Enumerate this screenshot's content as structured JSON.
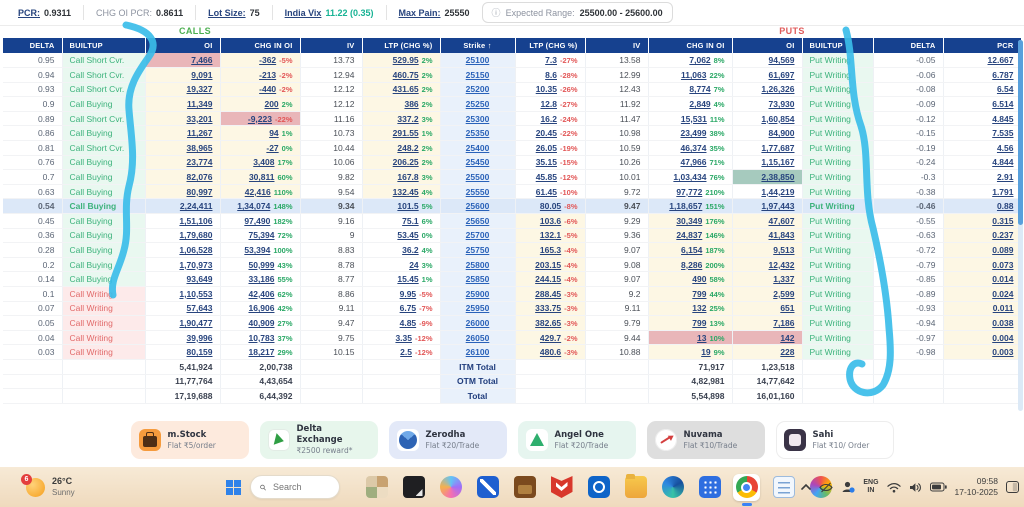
{
  "theme": {
    "header_navy": "#16418f",
    "cream": "#fdf7e4",
    "strike_bg": "#e9f1fb",
    "atm_row": "#dce8f8",
    "green": "#2aa866",
    "red": "#e25757",
    "link_navy": "#27447e",
    "strike_link": "#2a62b9",
    "builtup_green": "#3db27c",
    "builtup_red": "#e16a6a",
    "highlight_pink": "#e9b6b9",
    "highlight_green": "#a6cabe",
    "annotation": "#3bbde9",
    "taskbar_tan": "#f7ead6"
  },
  "top_bar": {
    "pcr_label": "PCR:",
    "pcr_value": "0.9311",
    "chg_oi_pcr_label": "CHG OI PCR:",
    "chg_oi_pcr_value": "0.8611",
    "lot_size_label": "Lot Size:",
    "lot_size_value": "75",
    "india_vix_label": "India Vix",
    "india_vix_value": "11.22 (0.35)",
    "max_pain_label": "Max Pain:",
    "max_pain_value": "25550",
    "info_icon": "ⓘ",
    "expected_range_label": "Expected Range:",
    "expected_range_value": "25500.00 - 25600.00"
  },
  "section_labels": {
    "calls": "CALLS",
    "puts": "PUTS"
  },
  "table": {
    "calls_headers": [
      "DELTA",
      "BUILTUP",
      "OI",
      "CHG IN OI",
      "IV",
      "LTP (CHG %)",
      "Strike ↑"
    ],
    "puts_headers": [
      "LTP (CHG %)",
      "IV",
      "CHG IN OI",
      "OI",
      "BUILTUP",
      "DELTA",
      "PCR"
    ],
    "rows": [
      {
        "delta": "0.95",
        "builtup": "Call Short Cvr.",
        "builtup_dir": "green",
        "oi": "7,466",
        "oi_hl": "pink",
        "chg": "-362",
        "chg_pct": "-5%",
        "chg_hl": "",
        "iv": "13.73",
        "ltp": "529.95",
        "ltp_pct": "2%",
        "strike": "25100",
        "put_ltp": "7.3",
        "put_ltp_pct": "-27%",
        "put_iv": "13.58",
        "put_chg": "7,062",
        "put_chg_pct": "8%",
        "put_chg_hl": "",
        "put_oi": "94,569",
        "put_oi_hl": "",
        "put_builtup": "Put Writing",
        "put_delta": "-0.05",
        "pcr": "12.667",
        "zone": "call_itm"
      },
      {
        "delta": "0.94",
        "builtup": "Call Short Cvr.",
        "builtup_dir": "green",
        "oi": "9,091",
        "oi_hl": "",
        "chg": "-213",
        "chg_pct": "-2%",
        "chg_hl": "",
        "iv": "12.94",
        "ltp": "460.75",
        "ltp_pct": "2%",
        "strike": "25150",
        "put_ltp": "8.6",
        "put_ltp_pct": "-28%",
        "put_iv": "12.99",
        "put_chg": "11,063",
        "put_chg_pct": "22%",
        "put_chg_hl": "",
        "put_oi": "61,697",
        "put_oi_hl": "",
        "put_builtup": "Put Writing",
        "put_delta": "-0.06",
        "pcr": "6.787",
        "zone": "call_itm"
      },
      {
        "delta": "0.93",
        "builtup": "Call Short Cvr.",
        "builtup_dir": "green",
        "oi": "19,327",
        "oi_hl": "",
        "chg": "-440",
        "chg_pct": "-2%",
        "chg_hl": "",
        "iv": "12.12",
        "ltp": "431.65",
        "ltp_pct": "2%",
        "strike": "25200",
        "put_ltp": "10.35",
        "put_ltp_pct": "-26%",
        "put_iv": "12.43",
        "put_chg": "8,774",
        "put_chg_pct": "7%",
        "put_chg_hl": "",
        "put_oi": "1,26,326",
        "put_oi_hl": "",
        "put_builtup": "Put Writing",
        "put_delta": "-0.08",
        "pcr": "6.54",
        "zone": "call_itm"
      },
      {
        "delta": "0.9",
        "builtup": "Call Buying",
        "builtup_dir": "green",
        "oi": "11,349",
        "oi_hl": "",
        "chg": "200",
        "chg_pct": "2%",
        "chg_hl": "",
        "iv": "12.12",
        "ltp": "386",
        "ltp_pct": "2%",
        "strike": "25250",
        "put_ltp": "12.8",
        "put_ltp_pct": "-27%",
        "put_iv": "11.92",
        "put_chg": "2,849",
        "put_chg_pct": "4%",
        "put_chg_hl": "",
        "put_oi": "73,930",
        "put_oi_hl": "",
        "put_builtup": "Put Writing",
        "put_delta": "-0.09",
        "pcr": "6.514",
        "zone": "call_itm"
      },
      {
        "delta": "0.89",
        "builtup": "Call Short Cvr.",
        "builtup_dir": "green",
        "oi": "33,201",
        "oi_hl": "",
        "chg": "-9,223",
        "chg_pct": "-22%",
        "chg_hl": "pink",
        "iv": "11.16",
        "ltp": "337.2",
        "ltp_pct": "3%",
        "strike": "25300",
        "put_ltp": "16.2",
        "put_ltp_pct": "-24%",
        "put_iv": "11.47",
        "put_chg": "15,531",
        "put_chg_pct": "11%",
        "put_chg_hl": "",
        "put_oi": "1,60,854",
        "put_oi_hl": "",
        "put_builtup": "Put Writing",
        "put_delta": "-0.12",
        "pcr": "4.845",
        "zone": "call_itm"
      },
      {
        "delta": "0.86",
        "builtup": "Call Buying",
        "builtup_dir": "green",
        "oi": "11,267",
        "oi_hl": "",
        "chg": "94",
        "chg_pct": "1%",
        "chg_hl": "",
        "iv": "10.73",
        "ltp": "291.55",
        "ltp_pct": "1%",
        "strike": "25350",
        "put_ltp": "20.45",
        "put_ltp_pct": "-22%",
        "put_iv": "10.98",
        "put_chg": "23,499",
        "put_chg_pct": "38%",
        "put_chg_hl": "",
        "put_oi": "84,900",
        "put_oi_hl": "",
        "put_builtup": "Put Writing",
        "put_delta": "-0.15",
        "pcr": "7.535",
        "zone": "call_itm"
      },
      {
        "delta": "0.81",
        "builtup": "Call Short Cvr.",
        "builtup_dir": "green",
        "oi": "38,965",
        "oi_hl": "",
        "chg": "-27",
        "chg_pct": "0%",
        "chg_hl": "",
        "iv": "10.44",
        "ltp": "248.2",
        "ltp_pct": "2%",
        "strike": "25400",
        "put_ltp": "26.05",
        "put_ltp_pct": "-19%",
        "put_iv": "10.59",
        "put_chg": "46,374",
        "put_chg_pct": "35%",
        "put_chg_hl": "",
        "put_oi": "1,77,687",
        "put_oi_hl": "",
        "put_builtup": "Put Writing",
        "put_delta": "-0.19",
        "pcr": "4.56",
        "zone": "call_itm"
      },
      {
        "delta": "0.76",
        "builtup": "Call Buying",
        "builtup_dir": "green",
        "oi": "23,774",
        "oi_hl": "",
        "chg": "3,408",
        "chg_pct": "17%",
        "chg_hl": "",
        "iv": "10.06",
        "ltp": "206.25",
        "ltp_pct": "2%",
        "strike": "25450",
        "put_ltp": "35.15",
        "put_ltp_pct": "-15%",
        "put_iv": "10.26",
        "put_chg": "47,966",
        "put_chg_pct": "71%",
        "put_chg_hl": "",
        "put_oi": "1,15,167",
        "put_oi_hl": "",
        "put_builtup": "Put Writing",
        "put_delta": "-0.24",
        "pcr": "4.844",
        "zone": "call_itm"
      },
      {
        "delta": "0.7",
        "builtup": "Call Buying",
        "builtup_dir": "green",
        "oi": "82,076",
        "oi_hl": "",
        "chg": "30,811",
        "chg_pct": "60%",
        "chg_hl": "",
        "iv": "9.82",
        "ltp": "167.8",
        "ltp_pct": "3%",
        "strike": "25500",
        "put_ltp": "45.85",
        "put_ltp_pct": "-12%",
        "put_iv": "10.01",
        "put_chg": "1,03,434",
        "put_chg_pct": "76%",
        "put_chg_hl": "",
        "put_oi": "2,38,850",
        "put_oi_hl": "green",
        "put_builtup": "Put Writing",
        "put_delta": "-0.3",
        "pcr": "2.91",
        "zone": "call_itm"
      },
      {
        "delta": "0.63",
        "builtup": "Call Buying",
        "builtup_dir": "green",
        "oi": "80,997",
        "oi_hl": "",
        "chg": "42,416",
        "chg_pct": "110%",
        "chg_hl": "",
        "iv": "9.54",
        "ltp": "132.45",
        "ltp_pct": "4%",
        "strike": "25550",
        "put_ltp": "61.45",
        "put_ltp_pct": "-10%",
        "put_iv": "9.72",
        "put_chg": "97,772",
        "put_chg_pct": "210%",
        "put_chg_hl": "",
        "put_oi": "1,44,219",
        "put_oi_hl": "",
        "put_builtup": "Put Writing",
        "put_delta": "-0.38",
        "pcr": "1.791",
        "zone": "call_itm"
      },
      {
        "delta": "0.54",
        "builtup": "Call Buying",
        "builtup_dir": "green",
        "oi": "2,24,411",
        "oi_hl": "",
        "chg": "1,34,074",
        "chg_pct": "148%",
        "chg_hl": "",
        "iv": "9.34",
        "ltp": "101.5",
        "ltp_pct": "5%",
        "strike": "25600",
        "put_ltp": "80.05",
        "put_ltp_pct": "-8%",
        "put_iv": "9.47",
        "put_chg": "1,18,657",
        "put_chg_pct": "151%",
        "put_chg_hl": "",
        "put_oi": "1,97,443",
        "put_oi_hl": "",
        "put_builtup": "Put Writing",
        "put_delta": "-0.46",
        "pcr": "0.88",
        "zone": "atm"
      },
      {
        "delta": "0.45",
        "builtup": "Call Buying",
        "builtup_dir": "green",
        "oi": "1,51,106",
        "oi_hl": "",
        "chg": "97,490",
        "chg_pct": "182%",
        "chg_hl": "",
        "iv": "9.16",
        "ltp": "75.1",
        "ltp_pct": "6%",
        "strike": "25650",
        "put_ltp": "103.6",
        "put_ltp_pct": "-6%",
        "put_iv": "9.29",
        "put_chg": "30,349",
        "put_chg_pct": "176%",
        "put_chg_hl": "",
        "put_oi": "47,607",
        "put_oi_hl": "",
        "put_builtup": "Put Writing",
        "put_delta": "-0.55",
        "pcr": "0.315",
        "zone": "put_itm"
      },
      {
        "delta": "0.36",
        "builtup": "Call Buying",
        "builtup_dir": "green",
        "oi": "1,79,680",
        "oi_hl": "",
        "chg": "75,394",
        "chg_pct": "72%",
        "chg_hl": "",
        "iv": "9",
        "ltp": "53.45",
        "ltp_pct": "0%",
        "strike": "25700",
        "put_ltp": "132.1",
        "put_ltp_pct": "-5%",
        "put_iv": "9.36",
        "put_chg": "24,837",
        "put_chg_pct": "146%",
        "put_chg_hl": "",
        "put_oi": "41,843",
        "put_oi_hl": "",
        "put_builtup": "Put Writing",
        "put_delta": "-0.63",
        "pcr": "0.237",
        "zone": "put_itm"
      },
      {
        "delta": "0.28",
        "builtup": "Call Buying",
        "builtup_dir": "green",
        "oi": "1,06,528",
        "oi_hl": "",
        "chg": "53,394",
        "chg_pct": "100%",
        "chg_hl": "",
        "iv": "8.83",
        "ltp": "36.2",
        "ltp_pct": "4%",
        "strike": "25750",
        "put_ltp": "165.3",
        "put_ltp_pct": "-4%",
        "put_iv": "9.07",
        "put_chg": "6,154",
        "put_chg_pct": "187%",
        "put_chg_hl": "",
        "put_oi": "9,513",
        "put_oi_hl": "",
        "put_builtup": "Put Writing",
        "put_delta": "-0.72",
        "pcr": "0.089",
        "zone": "put_itm"
      },
      {
        "delta": "0.2",
        "builtup": "Call Buying",
        "builtup_dir": "green",
        "oi": "1,70,973",
        "oi_hl": "",
        "chg": "50,999",
        "chg_pct": "43%",
        "chg_hl": "",
        "iv": "8.78",
        "ltp": "24",
        "ltp_pct": "3%",
        "strike": "25800",
        "put_ltp": "203.15",
        "put_ltp_pct": "-4%",
        "put_iv": "9.08",
        "put_chg": "8,286",
        "put_chg_pct": "200%",
        "put_chg_hl": "",
        "put_oi": "12,432",
        "put_oi_hl": "",
        "put_builtup": "Put Writing",
        "put_delta": "-0.79",
        "pcr": "0.073",
        "zone": "put_itm"
      },
      {
        "delta": "0.14",
        "builtup": "Call Buying",
        "builtup_dir": "green",
        "oi": "93,649",
        "oi_hl": "",
        "chg": "33,186",
        "chg_pct": "55%",
        "chg_hl": "",
        "iv": "8.77",
        "ltp": "15.45",
        "ltp_pct": "1%",
        "strike": "25850",
        "put_ltp": "244.15",
        "put_ltp_pct": "-4%",
        "put_iv": "9.07",
        "put_chg": "490",
        "put_chg_pct": "58%",
        "put_chg_hl": "",
        "put_oi": "1,337",
        "put_oi_hl": "",
        "put_builtup": "Put Writing",
        "put_delta": "-0.85",
        "pcr": "0.014",
        "zone": "put_itm"
      },
      {
        "delta": "0.1",
        "builtup": "Call Writing",
        "builtup_dir": "red",
        "oi": "1,10,553",
        "oi_hl": "",
        "chg": "42,406",
        "chg_pct": "62%",
        "chg_hl": "",
        "iv": "8.86",
        "ltp": "9.95",
        "ltp_pct": "-5%",
        "strike": "25900",
        "put_ltp": "288.45",
        "put_ltp_pct": "-3%",
        "put_iv": "9.2",
        "put_chg": "799",
        "put_chg_pct": "44%",
        "put_chg_hl": "",
        "put_oi": "2,599",
        "put_oi_hl": "",
        "put_builtup": "Put Writing",
        "put_delta": "-0.89",
        "pcr": "0.024",
        "zone": "put_itm"
      },
      {
        "delta": "0.07",
        "builtup": "Call Writing",
        "builtup_dir": "red",
        "oi": "57,643",
        "oi_hl": "",
        "chg": "16,906",
        "chg_pct": "42%",
        "chg_hl": "",
        "iv": "9.11",
        "ltp": "6.75",
        "ltp_pct": "-7%",
        "strike": "25950",
        "put_ltp": "333.75",
        "put_ltp_pct": "-3%",
        "put_iv": "9.11",
        "put_chg": "132",
        "put_chg_pct": "25%",
        "put_chg_hl": "",
        "put_oi": "651",
        "put_oi_hl": "",
        "put_builtup": "Put Writing",
        "put_delta": "-0.93",
        "pcr": "0.011",
        "zone": "put_itm"
      },
      {
        "delta": "0.05",
        "builtup": "Call Writing",
        "builtup_dir": "red",
        "oi": "1,90,477",
        "oi_hl": "",
        "chg": "40,909",
        "chg_pct": "27%",
        "chg_hl": "",
        "iv": "9.47",
        "ltp": "4.85",
        "ltp_pct": "-9%",
        "strike": "26000",
        "put_ltp": "382.65",
        "put_ltp_pct": "-3%",
        "put_iv": "9.79",
        "put_chg": "799",
        "put_chg_pct": "13%",
        "put_chg_hl": "",
        "put_oi": "7,186",
        "put_oi_hl": "",
        "put_builtup": "Put Writing",
        "put_delta": "-0.94",
        "pcr": "0.038",
        "zone": "put_itm"
      },
      {
        "delta": "0.04",
        "builtup": "Call Writing",
        "builtup_dir": "red",
        "oi": "39,996",
        "oi_hl": "",
        "chg": "10,783",
        "chg_pct": "37%",
        "chg_hl": "",
        "iv": "9.75",
        "ltp": "3.35",
        "ltp_pct": "-12%",
        "strike": "26050",
        "put_ltp": "429.7",
        "put_ltp_pct": "-2%",
        "put_iv": "9.44",
        "put_chg": "13",
        "put_chg_pct": "10%",
        "put_chg_hl": "pink",
        "put_oi": "142",
        "put_oi_hl": "pink",
        "put_builtup": "Put Writing",
        "put_delta": "-0.97",
        "pcr": "0.004",
        "zone": "put_itm"
      },
      {
        "delta": "0.03",
        "builtup": "Call Writing",
        "builtup_dir": "red",
        "oi": "80,159",
        "oi_hl": "",
        "chg": "18,217",
        "chg_pct": "29%",
        "chg_hl": "",
        "iv": "10.15",
        "ltp": "2.5",
        "ltp_pct": "-12%",
        "strike": "26100",
        "put_ltp": "480.6",
        "put_ltp_pct": "-3%",
        "put_iv": "10.88",
        "put_chg": "19",
        "put_chg_pct": "9%",
        "put_chg_hl": "",
        "put_oi": "228",
        "put_oi_hl": "",
        "put_builtup": "Put Writing",
        "put_delta": "-0.98",
        "pcr": "0.003",
        "zone": "put_itm"
      }
    ],
    "totals": [
      {
        "label": "ITM Total",
        "call_oi": "5,41,924",
        "call_chg": "2,00,738",
        "put_chg": "71,917",
        "put_oi": "1,23,518"
      },
      {
        "label": "OTM Total",
        "call_oi": "11,77,764",
        "call_chg": "4,43,654",
        "put_chg": "4,82,981",
        "put_oi": "14,77,642"
      },
      {
        "label": "Total",
        "call_oi": "17,19,688",
        "call_chg": "6,44,392",
        "put_chg": "5,54,898",
        "put_oi": "16,01,160"
      }
    ]
  },
  "ads": [
    {
      "name": "m.Stock",
      "offer": "Flat ₹5/order",
      "bg": "#fdeadd",
      "icon": "mstock"
    },
    {
      "name": "Delta Exchange",
      "offer": "₹2500 reward*",
      "bg": "#e7f6ec",
      "icon": "delta"
    },
    {
      "name": "Zerodha",
      "offer": "Flat ₹20/Trade",
      "bg": "#e3e9f8",
      "icon": "zerodha"
    },
    {
      "name": "Angel One",
      "offer": "Flat ₹20/Trade",
      "bg": "#e6f5ef",
      "icon": "angel"
    },
    {
      "name": "Nuvama",
      "offer": "Flat ₹10/Trade",
      "bg": "#dedede",
      "icon": "nuvama"
    },
    {
      "name": "Sahi",
      "offer": "Flat ₹10/ Order",
      "bg": "#ffffff",
      "icon": "sahi"
    }
  ],
  "taskbar": {
    "weather_badge": "6",
    "weather_temp": "26°C",
    "weather_cond": "Sunny",
    "search_placeholder": "Search",
    "app_icons": [
      {
        "icon": "task-view"
      },
      {
        "icon": "notes"
      },
      {
        "icon": "copilot"
      },
      {
        "icon": "trading"
      },
      {
        "icon": "portfolio"
      },
      {
        "icon": "mcafee"
      },
      {
        "icon": "outlook"
      },
      {
        "icon": "explorer"
      },
      {
        "icon": "edge"
      },
      {
        "icon": "calculator"
      },
      {
        "icon": "chrome",
        "active": true
      },
      {
        "icon": "notepad"
      },
      {
        "icon": "photos"
      }
    ],
    "lang_line1": "ENG",
    "lang_line2": "IN",
    "time": "09:58",
    "date": "17-10-2025"
  }
}
